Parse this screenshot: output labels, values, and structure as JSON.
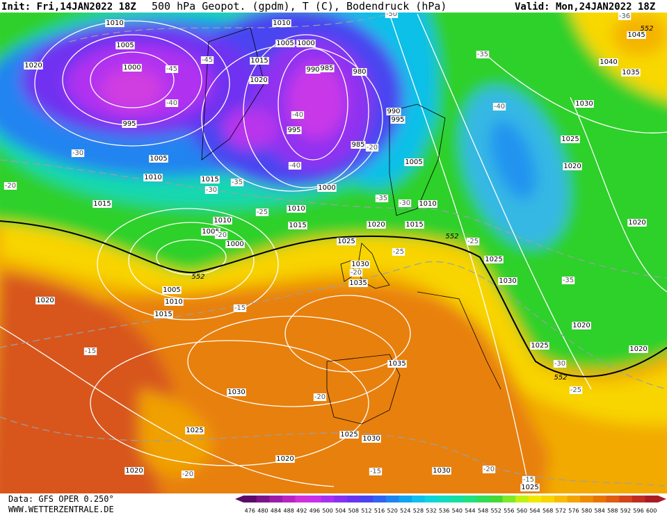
{
  "header": {
    "init": "Init: Fri,14JAN2022 18Z",
    "title": "500 hPa Geopot. (gpdm), T (C), Bodendruck (hPa)",
    "valid": "Valid: Mon,24JAN2022 18Z"
  },
  "footer": {
    "data": "Data: GFS OPER 0.250°",
    "site": "WWW.WETTERZENTRALE.DE"
  },
  "map": {
    "isobar_labels": [
      "1010",
      "1005",
      "1000",
      "995",
      "1020",
      "1005",
      "1010",
      "1015",
      "1015",
      "1010",
      "1005",
      "1000",
      "1015",
      "1020",
      "990",
      "985",
      "980",
      "995",
      "990",
      "995",
      "985",
      "1000",
      "1010",
      "1015",
      "1010",
      "1005",
      "1000",
      "1020",
      "1015",
      "1010",
      "1005",
      "1025",
      "1030",
      "1035",
      "1005",
      "1010",
      "1015",
      "1020",
      "1025",
      "1030",
      "1025",
      "1020",
      "1020",
      "1020",
      "1020",
      "1025",
      "1030",
      "1035",
      "1040",
      "1045",
      "1035",
      "1030",
      "1025",
      "1025",
      "1030",
      "1020",
      "1020",
      "1030",
      "1025"
    ],
    "temperature_labels": [
      "-45",
      "-40",
      "-30",
      "-35",
      "-30",
      "-25",
      "-20",
      "-40",
      "-40",
      "-35",
      "-30",
      "-20",
      "-35",
      "-40",
      "-25",
      "-25",
      "-20",
      "-15",
      "-15",
      "-20",
      "-20",
      "-15",
      "-20",
      "-15",
      "-30",
      "-25",
      "-35",
      "-36",
      "-50",
      "-45",
      "-20"
    ],
    "height_labels": [
      "552",
      "552",
      "552",
      "552"
    ]
  },
  "colorbar": {
    "labels": [
      476,
      480,
      484,
      488,
      492,
      496,
      500,
      504,
      508,
      512,
      516,
      520,
      524,
      528,
      532,
      536,
      540,
      544,
      548,
      552,
      556,
      560,
      564,
      568,
      572,
      576,
      580,
      584,
      588,
      592,
      596,
      600
    ],
    "colors": [
      "#5a0a6a",
      "#7a1488",
      "#9a1ca8",
      "#b824c4",
      "#d030dc",
      "#c830ec",
      "#a830f0",
      "#8830f0",
      "#6834f0",
      "#4844f0",
      "#3064f0",
      "#2084f0",
      "#10a4f0",
      "#10c0ec",
      "#10d4dc",
      "#10dcc0",
      "#14e0a0",
      "#20e080",
      "#30dc58",
      "#44d838",
      "#80e828",
      "#c0f010",
      "#f0e800",
      "#f8d400",
      "#f8bc00",
      "#f4a400",
      "#ee8c00",
      "#e87400",
      "#e05c10",
      "#d44418",
      "#c02c20",
      "#a81c24"
    ]
  }
}
